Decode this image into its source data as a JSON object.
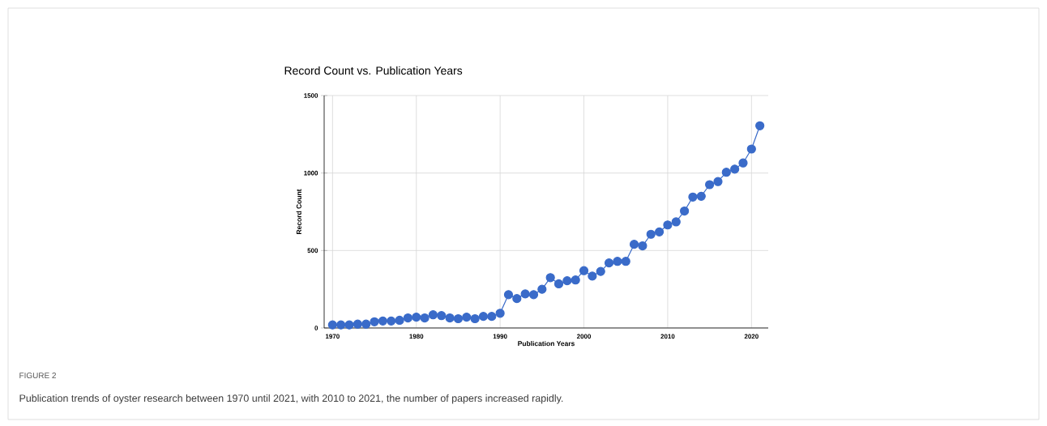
{
  "chart_data": {
    "type": "line",
    "title": "Record Count vs. Publication Years",
    "xlabel": "Publication Years",
    "ylabel": "Record Count",
    "x": [
      1970,
      1971,
      1972,
      1973,
      1974,
      1975,
      1976,
      1977,
      1978,
      1979,
      1980,
      1981,
      1982,
      1983,
      1984,
      1985,
      1986,
      1987,
      1988,
      1989,
      1990,
      1991,
      1992,
      1993,
      1994,
      1995,
      1996,
      1997,
      1998,
      1999,
      2000,
      2001,
      2002,
      2003,
      2004,
      2005,
      2006,
      2007,
      2008,
      2009,
      2010,
      2011,
      2012,
      2013,
      2014,
      2015,
      2016,
      2017,
      2018,
      2019,
      2020,
      2021
    ],
    "values": [
      20,
      20,
      20,
      25,
      25,
      40,
      45,
      45,
      50,
      65,
      70,
      65,
      85,
      80,
      65,
      60,
      70,
      60,
      75,
      75,
      95,
      215,
      190,
      220,
      215,
      250,
      325,
      285,
      305,
      310,
      370,
      335,
      365,
      420,
      430,
      430,
      540,
      530,
      605,
      620,
      665,
      685,
      755,
      845,
      850,
      925,
      945,
      1005,
      1025,
      1065,
      1155,
      1305
    ],
    "color": "#3a6bc9",
    "marker": "circle",
    "line_style": "solid",
    "grid": true,
    "xlim": [
      1969,
      2022
    ],
    "ylim": [
      0,
      1500
    ],
    "xticks": [
      1970,
      1980,
      1990,
      2000,
      2010,
      2020
    ],
    "yticks": [
      0,
      500,
      1000,
      1500
    ],
    "annotations": [
      "FIGURE 2",
      "Publication trends of oyster research between 1970 until 2021, with 2010 to 2021, the number of papers increased rapidly."
    ]
  }
}
